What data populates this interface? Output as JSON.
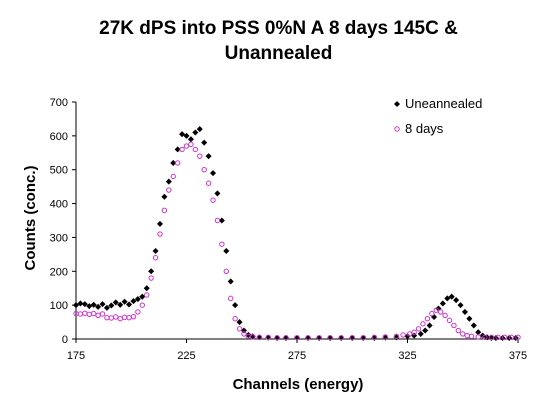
{
  "chart_data": {
    "type": "scatter",
    "title_line1": "27K dPS into PSS 0%N A 8 days 145C &",
    "title_line2": "Unannealed",
    "xlabel": "Channels (energy)",
    "ylabel": "Counts (conc.)",
    "xlim": [
      175,
      375
    ],
    "ylim": [
      0,
      700
    ],
    "x_ticks": [
      175,
      225,
      275,
      325,
      375
    ],
    "y_ticks": [
      0,
      100,
      200,
      300,
      400,
      500,
      600,
      700
    ],
    "grid": false,
    "legend_position": "top-right",
    "series": [
      {
        "name": "Uneannealed",
        "color": "#000000",
        "marker": "diamond",
        "points": [
          [
            175,
            100
          ],
          [
            177,
            105
          ],
          [
            179,
            103
          ],
          [
            181,
            97
          ],
          [
            183,
            101
          ],
          [
            185,
            95
          ],
          [
            187,
            103
          ],
          [
            189,
            92
          ],
          [
            191,
            99
          ],
          [
            193,
            108
          ],
          [
            195,
            101
          ],
          [
            197,
            110
          ],
          [
            199,
            102
          ],
          [
            201,
            112
          ],
          [
            203,
            118
          ],
          [
            205,
            125
          ],
          [
            207,
            150
          ],
          [
            209,
            200
          ],
          [
            211,
            260
          ],
          [
            213,
            340
          ],
          [
            215,
            420
          ],
          [
            217,
            465
          ],
          [
            219,
            520
          ],
          [
            221,
            560
          ],
          [
            223,
            605
          ],
          [
            225,
            600
          ],
          [
            227,
            590
          ],
          [
            229,
            610
          ],
          [
            231,
            620
          ],
          [
            233,
            580
          ],
          [
            235,
            540
          ],
          [
            237,
            490
          ],
          [
            239,
            430
          ],
          [
            241,
            350
          ],
          [
            243,
            260
          ],
          [
            245,
            170
          ],
          [
            247,
            100
          ],
          [
            249,
            50
          ],
          [
            251,
            25
          ],
          [
            253,
            12
          ],
          [
            255,
            8
          ],
          [
            258,
            5
          ],
          [
            262,
            4
          ],
          [
            266,
            3
          ],
          [
            270,
            3
          ],
          [
            275,
            3
          ],
          [
            280,
            3
          ],
          [
            285,
            3
          ],
          [
            290,
            3
          ],
          [
            295,
            3
          ],
          [
            300,
            3
          ],
          [
            305,
            3
          ],
          [
            310,
            3
          ],
          [
            315,
            4
          ],
          [
            320,
            5
          ],
          [
            325,
            8
          ],
          [
            328,
            10
          ],
          [
            331,
            15
          ],
          [
            333,
            25
          ],
          [
            335,
            40
          ],
          [
            337,
            65
          ],
          [
            339,
            90
          ],
          [
            341,
            105
          ],
          [
            343,
            120
          ],
          [
            345,
            125
          ],
          [
            347,
            115
          ],
          [
            349,
            100
          ],
          [
            351,
            80
          ],
          [
            353,
            60
          ],
          [
            355,
            40
          ],
          [
            357,
            20
          ],
          [
            359,
            10
          ],
          [
            361,
            5
          ],
          [
            363,
            3
          ],
          [
            365,
            3
          ],
          [
            368,
            3
          ],
          [
            371,
            3
          ],
          [
            374,
            3
          ]
        ]
      },
      {
        "name": "8 days",
        "color": "#cc33cc",
        "marker": "circle",
        "points": [
          [
            175,
            75
          ],
          [
            177,
            74
          ],
          [
            179,
            76
          ],
          [
            181,
            73
          ],
          [
            183,
            75
          ],
          [
            185,
            70
          ],
          [
            187,
            74
          ],
          [
            189,
            63
          ],
          [
            191,
            62
          ],
          [
            193,
            65
          ],
          [
            195,
            60
          ],
          [
            197,
            64
          ],
          [
            199,
            63
          ],
          [
            201,
            66
          ],
          [
            203,
            80
          ],
          [
            205,
            100
          ],
          [
            207,
            130
          ],
          [
            209,
            180
          ],
          [
            211,
            240
          ],
          [
            213,
            310
          ],
          [
            215,
            380
          ],
          [
            217,
            440
          ],
          [
            219,
            480
          ],
          [
            221,
            520
          ],
          [
            223,
            560
          ],
          [
            225,
            570
          ],
          [
            227,
            575
          ],
          [
            229,
            560
          ],
          [
            231,
            540
          ],
          [
            233,
            500
          ],
          [
            235,
            460
          ],
          [
            237,
            410
          ],
          [
            239,
            350
          ],
          [
            241,
            280
          ],
          [
            243,
            200
          ],
          [
            245,
            120
          ],
          [
            247,
            60
          ],
          [
            249,
            30
          ],
          [
            251,
            15
          ],
          [
            253,
            8
          ],
          [
            255,
            6
          ],
          [
            258,
            5
          ],
          [
            262,
            5
          ],
          [
            266,
            4
          ],
          [
            270,
            4
          ],
          [
            275,
            4
          ],
          [
            280,
            4
          ],
          [
            285,
            4
          ],
          [
            290,
            4
          ],
          [
            295,
            4
          ],
          [
            300,
            4
          ],
          [
            305,
            4
          ],
          [
            310,
            5
          ],
          [
            315,
            6
          ],
          [
            320,
            8
          ],
          [
            323,
            12
          ],
          [
            326,
            15
          ],
          [
            328,
            20
          ],
          [
            330,
            30
          ],
          [
            332,
            45
          ],
          [
            334,
            60
          ],
          [
            336,
            75
          ],
          [
            338,
            85
          ],
          [
            340,
            80
          ],
          [
            342,
            70
          ],
          [
            344,
            55
          ],
          [
            346,
            40
          ],
          [
            348,
            25
          ],
          [
            350,
            15
          ],
          [
            352,
            10
          ],
          [
            354,
            8
          ],
          [
            357,
            6
          ],
          [
            360,
            5
          ],
          [
            363,
            5
          ],
          [
            366,
            5
          ],
          [
            369,
            5
          ],
          [
            372,
            5
          ],
          [
            375,
            5
          ]
        ]
      }
    ]
  }
}
